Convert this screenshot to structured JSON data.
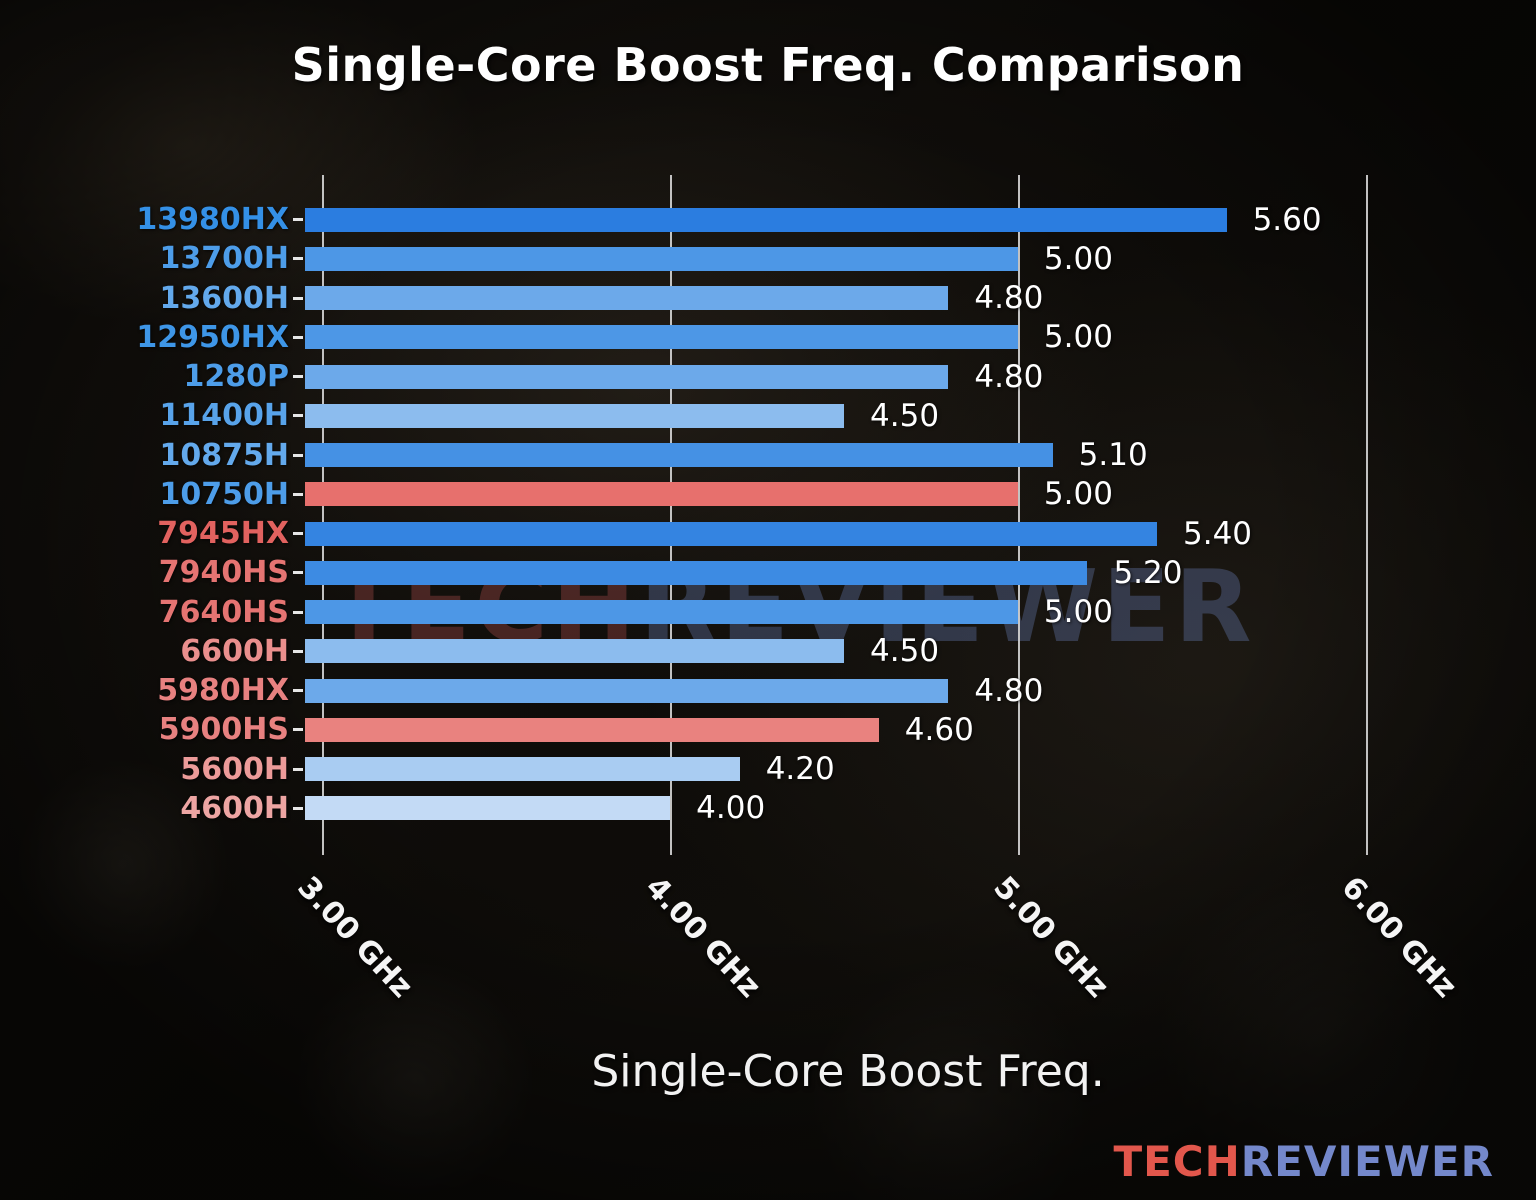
{
  "watermark": {
    "part1": "TECH",
    "part2": "REVIEWER"
  },
  "logo": {
    "part1": "TECH",
    "part2": "REVIEWER"
  },
  "chart_data": {
    "type": "bar",
    "orientation": "horizontal",
    "title": "Single-Core Boost Freq. Comparison",
    "xlabel": "Single-Core Boost Freq.",
    "xlim": [
      2.95,
      6.3
    ],
    "grid": true,
    "legend": "none",
    "categories": [
      "13980HX",
      "13700H",
      "13600H",
      "12950HX",
      "1280P",
      "11400H",
      "10875H",
      "10750H",
      "7945HX",
      "7940HS",
      "7640HS",
      "6600H",
      "5980HX",
      "5900HS",
      "5600H",
      "4600H"
    ],
    "values": [
      5.6,
      5.0,
      4.8,
      5.0,
      4.8,
      4.5,
      5.1,
      5.0,
      5.4,
      5.2,
      5.0,
      4.5,
      4.8,
      4.6,
      4.2,
      4.0
    ],
    "value_labels": [
      "5.60",
      "5.00",
      "4.80",
      "5.00",
      "4.80",
      "4.50",
      "5.10",
      "5.00",
      "5.40",
      "5.20",
      "5.00",
      "4.50",
      "4.80",
      "4.60",
      "4.20",
      "4.00"
    ],
    "bar_colors": [
      "#2b7de0",
      "#4d97e6",
      "#6ca9ea",
      "#4d97e6",
      "#6ca9ea",
      "#8cbcee",
      "#4591e4",
      "#e7706d",
      "#3484e1",
      "#3d8be3",
      "#4d97e6",
      "#8cbcee",
      "#6ca9ea",
      "#e9827f",
      "#a9ccf2",
      "#c3daf5"
    ],
    "label_colors": [
      "#3490e6",
      "#4d9de9",
      "#63a9ec",
      "#3e96e7",
      "#4d9de9",
      "#58a3ea",
      "#63a9ec",
      "#4d9de9",
      "#e2625f",
      "#e57472",
      "#e57472",
      "#ea8f8d",
      "#e78180",
      "#e78180",
      "#ec9b99",
      "#eda5a3"
    ],
    "ticks": [
      {
        "value": 3.0,
        "label": "3.00 GHz"
      },
      {
        "value": 4.0,
        "label": "4.00 GHz"
      },
      {
        "value": 5.0,
        "label": "5.00 GHz"
      },
      {
        "value": 6.0,
        "label": "6.00 GHz"
      }
    ]
  }
}
